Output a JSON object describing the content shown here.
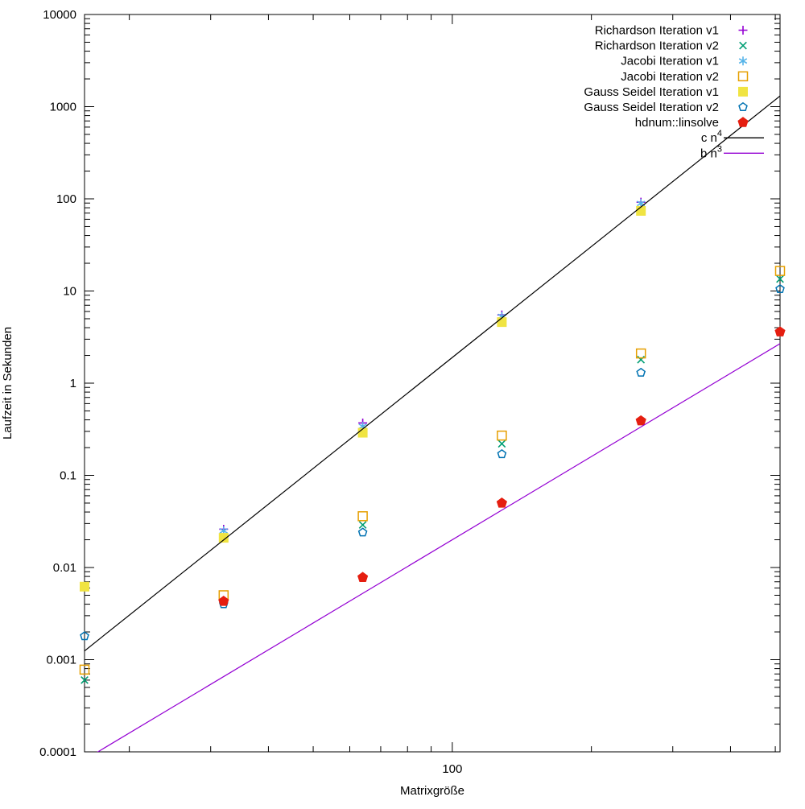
{
  "chart_data": {
    "type": "scatter",
    "title": "",
    "xlabel": "Matrixgröße",
    "ylabel": "Laufzeit in Sekunden",
    "xscale": "log",
    "yscale": "log",
    "xlim": [
      16,
      512
    ],
    "ylim": [
      0.0001,
      10000
    ],
    "grid": false,
    "legend_position": "top-right-inside",
    "background_color": "#ffffff",
    "axis_color": "#000000",
    "x": [
      16,
      32,
      64,
      128,
      256,
      512
    ],
    "xticks": [
      {
        "value": 100,
        "label": "100"
      }
    ],
    "yticks": [
      {
        "value": 10000,
        "label": "10000"
      },
      {
        "value": 1000,
        "label": "1000"
      },
      {
        "value": 100,
        "label": "100"
      },
      {
        "value": 10,
        "label": "10"
      },
      {
        "value": 1,
        "label": "1"
      },
      {
        "value": 0.1,
        "label": "0.1"
      },
      {
        "value": 0.01,
        "label": "0.01"
      },
      {
        "value": 0.001,
        "label": "0.001"
      },
      {
        "value": 0.0001,
        "label": "0.0001"
      }
    ],
    "series": [
      {
        "name": "Richardson Iteration v1",
        "marker": "plus",
        "color": "#9400D3",
        "values": [
          null,
          0.026,
          0.37,
          5.5,
          92,
          null
        ]
      },
      {
        "name": "Richardson Iteration v2",
        "marker": "cross",
        "color": "#009E73",
        "values": [
          0.0006,
          null,
          0.029,
          0.22,
          1.8,
          13.5
        ]
      },
      {
        "name": "Jacobi Iteration v1",
        "marker": "asterisk",
        "color": "#56B4E9",
        "values": [
          null,
          0.025,
          0.34,
          5.3,
          89,
          null
        ]
      },
      {
        "name": "Jacobi Iteration v2",
        "marker": "square-open",
        "color": "#E69F00",
        "values": [
          0.00078,
          0.005,
          0.036,
          0.27,
          2.1,
          16.5
        ]
      },
      {
        "name": "Gauss Seidel Iteration v1",
        "marker": "square-filled",
        "color": "#F0E442",
        "values": [
          0.0062,
          0.021,
          0.29,
          4.6,
          74,
          null
        ]
      },
      {
        "name": "Gauss Seidel Iteration v2",
        "marker": "pentagon-open",
        "color": "#0072B2",
        "values": [
          0.0018,
          0.004,
          0.024,
          0.17,
          1.3,
          10.5
        ]
      },
      {
        "name": "hdnum::linsolve",
        "marker": "pentagon-filled",
        "color": "#E51E10",
        "values": [
          null,
          0.0043,
          0.0078,
          0.05,
          0.39,
          3.6
        ]
      }
    ],
    "lines": [
      {
        "name": "c n",
        "sup": "4",
        "color": "#000000",
        "coefficient": 1.9e-08,
        "exponent": 4
      },
      {
        "name": "b n",
        "sup": "3",
        "color": "#9400D3",
        "coefficient": 2e-08,
        "exponent": 3
      }
    ]
  }
}
